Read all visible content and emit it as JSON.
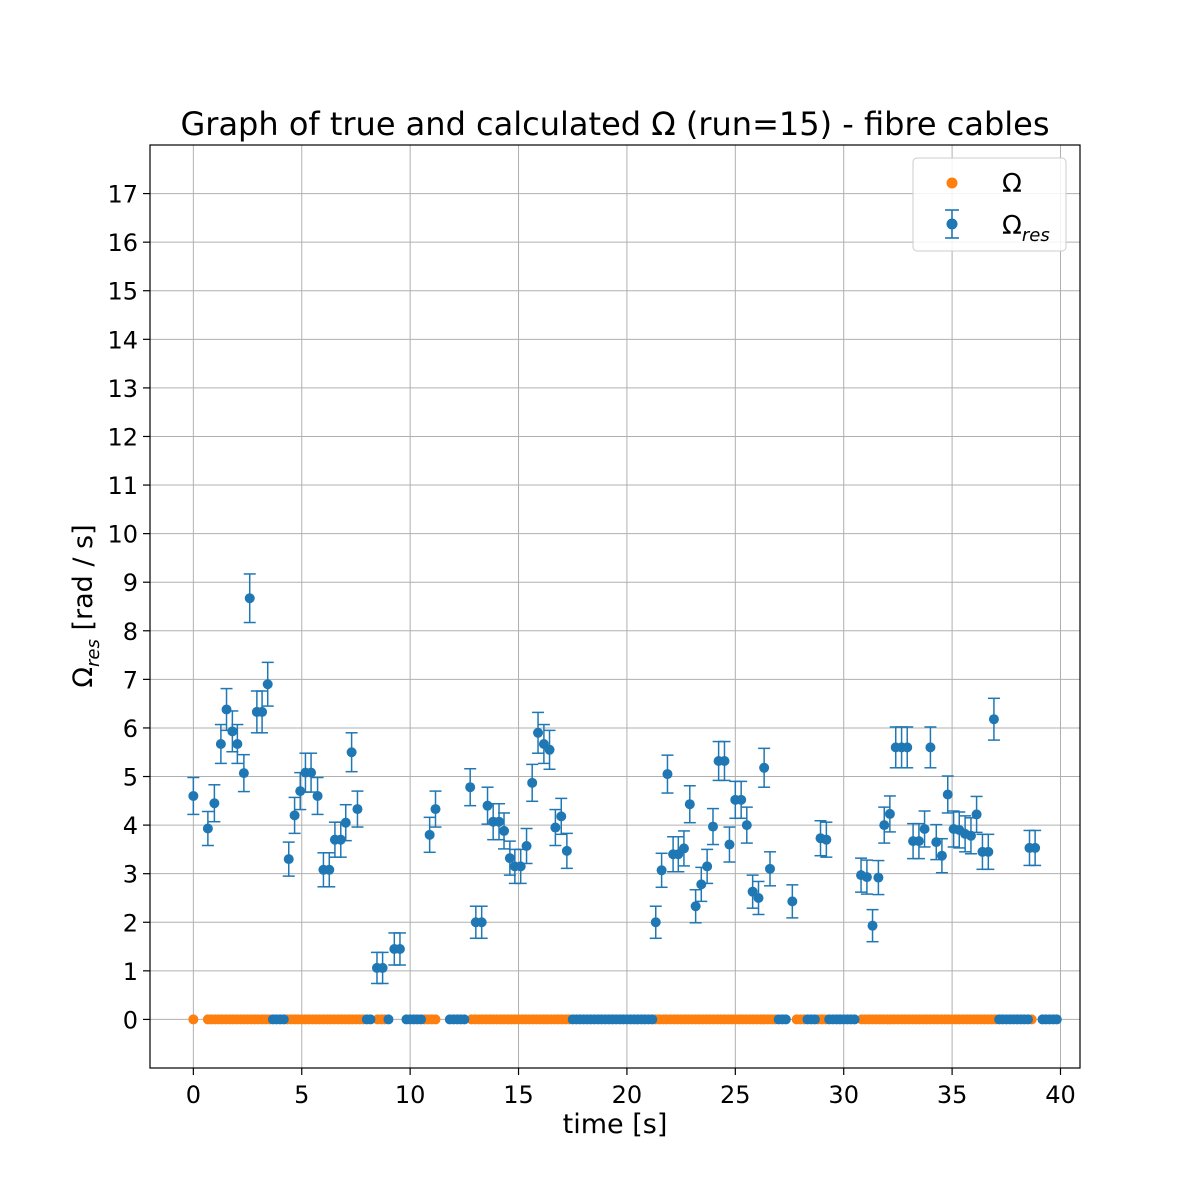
{
  "chart_data": {
    "type": "scatter",
    "title": "Graph of true and calculated Ω (run=15) - fibre cables",
    "xlabel": "time [s]",
    "ylabel_main": "Ω",
    "ylabel_sub": "res",
    "ylabel_tail": " [rad / s]",
    "xlim": [
      -2,
      40.9
    ],
    "ylim": [
      -1,
      18
    ],
    "xticks": [
      0,
      5,
      10,
      15,
      20,
      25,
      30,
      35,
      40
    ],
    "yticks": [
      0,
      1,
      2,
      3,
      4,
      5,
      6,
      7,
      8,
      9,
      10,
      11,
      12,
      13,
      14,
      15,
      16,
      17
    ],
    "grid": true,
    "legend_position": "top-right",
    "colors": {
      "omega": "#ff7f0e",
      "omega_res": "#1f77b4",
      "grid": "#b0b0b0"
    },
    "legend": [
      {
        "main": "Ω",
        "sub": ""
      },
      {
        "main": "Ω",
        "sub": "res"
      }
    ],
    "series": [
      {
        "name": "Ω",
        "kind": "points",
        "x": [
          0,
          0.67,
          0.83,
          1,
          1.17,
          1.33,
          1.5,
          1.67,
          1.83,
          2,
          2.17,
          2.33,
          2.5,
          2.67,
          2.83,
          3,
          3.17,
          3.33,
          3.5,
          4.33,
          4.5,
          4.67,
          4.83,
          5,
          5.17,
          5.33,
          5.5,
          5.67,
          5.83,
          6,
          6.17,
          6.33,
          6.5,
          6.67,
          6.83,
          7,
          7.17,
          7.33,
          7.5,
          7.67,
          7.83,
          8.5,
          8.67,
          8.83,
          10.67,
          10.83,
          11,
          11.17,
          12.83,
          13,
          13.17,
          13.33,
          13.5,
          13.67,
          13.83,
          14,
          14.17,
          14.33,
          14.5,
          14.67,
          14.83,
          15,
          15.17,
          15.33,
          15.5,
          15.67,
          15.83,
          16,
          16.17,
          16.33,
          16.5,
          16.67,
          16.83,
          17,
          17.17,
          17.33,
          21.33,
          21.5,
          21.67,
          21.83,
          22,
          22.17,
          22.33,
          22.5,
          22.67,
          22.83,
          23,
          23.17,
          23.33,
          23.5,
          23.67,
          23.83,
          24,
          24.17,
          24.33,
          24.5,
          24.67,
          24.83,
          25,
          25.17,
          25.33,
          25.5,
          25.67,
          25.83,
          26,
          26.17,
          26.33,
          26.5,
          26.67,
          26.83,
          27.83,
          28,
          28.17,
          28.83,
          29,
          29.17,
          30.83,
          31,
          31.17,
          31.33,
          31.5,
          31.67,
          31.83,
          32,
          32.17,
          32.33,
          32.5,
          32.67,
          32.83,
          33,
          33.17,
          33.33,
          33.5,
          33.67,
          33.83,
          34,
          34.17,
          34.33,
          34.5,
          34.67,
          34.83,
          35,
          35.17,
          35.33,
          35.5,
          35.67,
          35.83,
          36,
          36.17,
          36.33,
          36.5,
          36.67,
          36.83,
          37,
          38.67
        ],
        "y_constant": 0
      },
      {
        "name": "Ω_res",
        "kind": "errorbar",
        "zero_x": [
          3.67,
          3.83,
          4,
          4.17,
          8,
          8.17,
          9,
          9.83,
          10,
          10.17,
          10.33,
          10.5,
          11.83,
          12,
          12.17,
          12.33,
          12.5,
          17.5,
          17.67,
          17.83,
          18,
          18.17,
          18.33,
          18.5,
          18.67,
          18.83,
          19,
          19.17,
          19.33,
          19.5,
          19.67,
          19.83,
          20,
          20.17,
          20.33,
          20.5,
          20.67,
          20.83,
          21,
          21.17,
          27,
          27.17,
          27.33,
          28.33,
          28.5,
          28.67,
          29.33,
          29.5,
          29.67,
          29.83,
          30,
          30.17,
          30.33,
          30.5,
          37.17,
          37.33,
          37.5,
          37.67,
          37.83,
          38,
          38.17,
          38.33,
          38.5,
          39.17,
          39.33,
          39.5,
          39.67,
          39.83
        ],
        "points": [
          [
            0,
            4.6,
            0.38
          ],
          [
            0.67,
            3.93,
            0.35
          ],
          [
            0.97,
            4.45,
            0.38
          ],
          [
            1.27,
            5.67,
            0.4
          ],
          [
            1.53,
            6.38,
            0.43
          ],
          [
            1.8,
            5.93,
            0.42
          ],
          [
            2.03,
            5.67,
            0.4
          ],
          [
            2.33,
            5.07,
            0.38
          ],
          [
            2.6,
            8.67,
            0.5
          ],
          [
            2.93,
            6.33,
            0.43
          ],
          [
            3.17,
            6.33,
            0.43
          ],
          [
            3.43,
            6.9,
            0.45
          ],
          [
            4.4,
            3.3,
            0.35
          ],
          [
            4.67,
            4.2,
            0.37
          ],
          [
            4.93,
            4.7,
            0.38
          ],
          [
            5.17,
            5.08,
            0.4
          ],
          [
            5.43,
            5.08,
            0.4
          ],
          [
            5.73,
            4.6,
            0.38
          ],
          [
            6,
            3.08,
            0.35
          ],
          [
            6.27,
            3.08,
            0.35
          ],
          [
            6.53,
            3.7,
            0.36
          ],
          [
            6.8,
            3.7,
            0.36
          ],
          [
            7.03,
            4.05,
            0.37
          ],
          [
            7.3,
            5.5,
            0.4
          ],
          [
            7.57,
            4.33,
            0.37
          ],
          [
            8.47,
            1.06,
            0.32
          ],
          [
            8.73,
            1.06,
            0.32
          ],
          [
            9.27,
            1.45,
            0.33
          ],
          [
            9.53,
            1.45,
            0.33
          ],
          [
            10.9,
            3.8,
            0.36
          ],
          [
            11.17,
            4.33,
            0.37
          ],
          [
            12.77,
            4.78,
            0.38
          ],
          [
            13.03,
            2.0,
            0.33
          ],
          [
            13.3,
            2.0,
            0.33
          ],
          [
            13.57,
            4.4,
            0.38
          ],
          [
            13.83,
            4.07,
            0.37
          ],
          [
            14.1,
            4.07,
            0.37
          ],
          [
            14.33,
            3.88,
            0.37
          ],
          [
            14.6,
            3.32,
            0.35
          ],
          [
            14.83,
            3.15,
            0.35
          ],
          [
            15.1,
            3.15,
            0.35
          ],
          [
            15.37,
            3.57,
            0.36
          ],
          [
            15.63,
            4.87,
            0.38
          ],
          [
            15.9,
            5.9,
            0.42
          ],
          [
            16.17,
            5.67,
            0.4
          ],
          [
            16.43,
            5.55,
            0.4
          ],
          [
            16.7,
            3.95,
            0.37
          ],
          [
            16.97,
            4.18,
            0.37
          ],
          [
            17.23,
            3.47,
            0.36
          ],
          [
            21.33,
            2.0,
            0.33
          ],
          [
            21.6,
            3.07,
            0.35
          ],
          [
            21.87,
            5.05,
            0.39
          ],
          [
            22.13,
            3.4,
            0.36
          ],
          [
            22.37,
            3.4,
            0.36
          ],
          [
            22.63,
            3.52,
            0.36
          ],
          [
            22.9,
            4.43,
            0.38
          ],
          [
            23.17,
            2.33,
            0.34
          ],
          [
            23.43,
            2.78,
            0.35
          ],
          [
            23.7,
            3.15,
            0.35
          ],
          [
            23.97,
            3.97,
            0.37
          ],
          [
            24.23,
            5.32,
            0.4
          ],
          [
            24.5,
            5.32,
            0.4
          ],
          [
            24.73,
            3.6,
            0.36
          ],
          [
            25,
            4.52,
            0.38
          ],
          [
            25.27,
            4.52,
            0.38
          ],
          [
            25.53,
            4.0,
            0.37
          ],
          [
            25.8,
            2.63,
            0.34
          ],
          [
            26.07,
            2.5,
            0.34
          ],
          [
            26.33,
            5.18,
            0.4
          ],
          [
            26.6,
            3.1,
            0.35
          ],
          [
            27.63,
            2.43,
            0.34
          ],
          [
            28.93,
            3.73,
            0.36
          ],
          [
            29.2,
            3.7,
            0.36
          ],
          [
            30.8,
            2.97,
            0.35
          ],
          [
            31.07,
            2.93,
            0.35
          ],
          [
            31.33,
            1.93,
            0.33
          ],
          [
            31.6,
            2.92,
            0.35
          ],
          [
            31.87,
            4.0,
            0.37
          ],
          [
            32.13,
            4.23,
            0.37
          ],
          [
            32.4,
            5.6,
            0.42
          ],
          [
            32.67,
            5.6,
            0.42
          ],
          [
            32.93,
            5.6,
            0.42
          ],
          [
            33.2,
            3.67,
            0.36
          ],
          [
            33.47,
            3.67,
            0.36
          ],
          [
            33.73,
            3.92,
            0.37
          ],
          [
            34,
            5.6,
            0.42
          ],
          [
            34.27,
            3.65,
            0.36
          ],
          [
            34.53,
            3.37,
            0.35
          ],
          [
            34.8,
            4.63,
            0.38
          ],
          [
            35.07,
            3.92,
            0.37
          ],
          [
            35.33,
            3.9,
            0.37
          ],
          [
            35.6,
            3.82,
            0.37
          ],
          [
            35.87,
            3.78,
            0.37
          ],
          [
            36.13,
            4.22,
            0.37
          ],
          [
            36.4,
            3.45,
            0.36
          ],
          [
            36.67,
            3.45,
            0.36
          ],
          [
            36.93,
            6.18,
            0.43
          ],
          [
            38.57,
            3.53,
            0.36
          ],
          [
            38.83,
            3.53,
            0.36
          ]
        ]
      }
    ]
  }
}
